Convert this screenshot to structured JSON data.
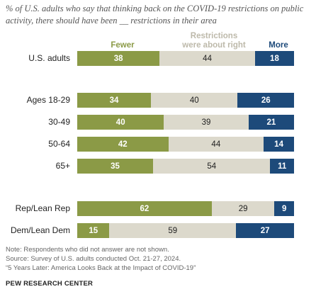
{
  "subtitle": "% of U.S. adults who say that thinking back on the COVID-19 restrictions on public activity, there should have been __ restrictions in their area",
  "colors": {
    "fewer": "#8b9a46",
    "about_right": "#dcd9cc",
    "more": "#1d4a7a"
  },
  "legend": {
    "fewer": "Fewer",
    "about_right_line1": "Restrictions",
    "about_right_line2": "were about right",
    "more": "More"
  },
  "chart_data": {
    "type": "bar",
    "orientation": "horizontal-stacked",
    "categories": [
      "U.S. adults",
      "Ages 18-29",
      "30-49",
      "50-64",
      "65+",
      "Rep/Lean Rep",
      "Dem/Lean Dem"
    ],
    "series": [
      {
        "name": "Fewer",
        "values": [
          38,
          34,
          40,
          42,
          35,
          62,
          15
        ]
      },
      {
        "name": "Restrictions were about right",
        "values": [
          44,
          40,
          39,
          44,
          54,
          29,
          59
        ]
      },
      {
        "name": "More",
        "values": [
          18,
          26,
          21,
          14,
          11,
          9,
          27
        ]
      }
    ],
    "legend_position": "top"
  },
  "notes": {
    "line1": "Note: Respondents who did not answer are not shown.",
    "line2": "Source: Survey of U.S. adults conducted Oct. 21-27, 2024.",
    "line3": "“5 Years Later: America Looks Back at the Impact of COVID-19”"
  },
  "org": "PEW RESEARCH CENTER"
}
